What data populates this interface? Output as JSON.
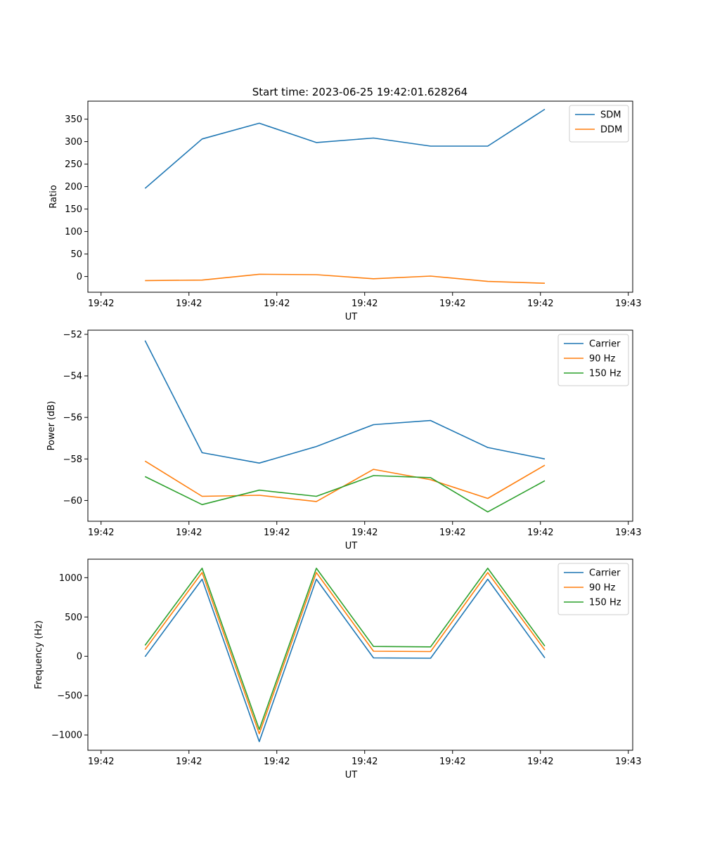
{
  "title": "Start time: 2023-06-25 19:42:01.628264",
  "colors": {
    "blue": "#1f77b4",
    "orange": "#ff7f0e",
    "green": "#2ca02c"
  },
  "chart_data": [
    {
      "type": "line",
      "title": "Start time: 2023-06-25 19:42:01.628264",
      "xlabel": "UT",
      "ylabel": "Ratio",
      "x_tick_labels": [
        "19:42",
        "19:42",
        "19:42",
        "19:42",
        "19:42",
        "19:42",
        "19:43"
      ],
      "y_ticks": [
        0,
        50,
        100,
        150,
        200,
        250,
        300,
        350
      ],
      "ylim": [
        -35,
        390
      ],
      "x_index": [
        0.5,
        1.15,
        1.8,
        2.45,
        3.1,
        3.75,
        4.4,
        5.05
      ],
      "xlim": [
        -0.15,
        6.05
      ],
      "legend_position": "top-right",
      "series": [
        {
          "name": "SDM",
          "color": "#1f77b4",
          "values": [
            196,
            306,
            341,
            298,
            308,
            290,
            290,
            372
          ]
        },
        {
          "name": "DDM",
          "color": "#ff7f0e",
          "values": [
            -9,
            -8,
            5,
            4,
            -5,
            1,
            -11,
            -15
          ]
        }
      ]
    },
    {
      "type": "line",
      "title": "",
      "xlabel": "UT",
      "ylabel": "Power (dB)",
      "x_tick_labels": [
        "19:42",
        "19:42",
        "19:42",
        "19:42",
        "19:42",
        "19:42",
        "19:43"
      ],
      "y_ticks": [
        -60,
        -58,
        -56,
        -54,
        -52
      ],
      "y_tick_labels": [
        "−60",
        "−58",
        "−56",
        "−54",
        "−52"
      ],
      "ylim": [
        -61.0,
        -51.8
      ],
      "x_index": [
        0.5,
        1.15,
        1.8,
        2.45,
        3.1,
        3.75,
        4.4,
        5.05
      ],
      "xlim": [
        -0.15,
        6.05
      ],
      "legend_position": "top-right",
      "series": [
        {
          "name": "Carrier",
          "color": "#1f77b4",
          "values": [
            -52.3,
            -57.7,
            -58.2,
            -57.4,
            -56.35,
            -56.15,
            -57.45,
            -58.0
          ]
        },
        {
          "name": "90 Hz",
          "color": "#ff7f0e",
          "values": [
            -58.1,
            -59.8,
            -59.75,
            -60.05,
            -58.5,
            -59.0,
            -59.9,
            -58.3
          ]
        },
        {
          "name": "150 Hz",
          "color": "#2ca02c",
          "values": [
            -58.85,
            -60.2,
            -59.5,
            -59.8,
            -58.8,
            -58.9,
            -60.55,
            -59.05
          ]
        }
      ]
    },
    {
      "type": "line",
      "title": "",
      "xlabel": "UT",
      "ylabel": "Frequency (Hz)",
      "x_tick_labels": [
        "19:42",
        "19:42",
        "19:42",
        "19:42",
        "19:42",
        "19:42",
        "19:43"
      ],
      "y_ticks": [
        -1000,
        -500,
        0,
        500,
        1000
      ],
      "y_tick_labels": [
        "−1000",
        "−500",
        "0",
        "500",
        "1000"
      ],
      "ylim": [
        -1195,
        1235
      ],
      "x_index": [
        0.5,
        1.15,
        1.8,
        2.45,
        3.1,
        3.75,
        4.4,
        5.05
      ],
      "xlim": [
        -0.15,
        6.05
      ],
      "legend_position": "top-right",
      "series": [
        {
          "name": "Carrier",
          "color": "#1f77b4",
          "values": [
            -5,
            980,
            -1085,
            980,
            -20,
            -25,
            980,
            -20
          ]
        },
        {
          "name": "90 Hz",
          "color": "#ff7f0e",
          "values": [
            85,
            1065,
            -985,
            1065,
            65,
            60,
            1065,
            80
          ]
        },
        {
          "name": "150 Hz",
          "color": "#2ca02c",
          "values": [
            140,
            1120,
            -930,
            1120,
            125,
            120,
            1120,
            130
          ]
        }
      ]
    }
  ]
}
